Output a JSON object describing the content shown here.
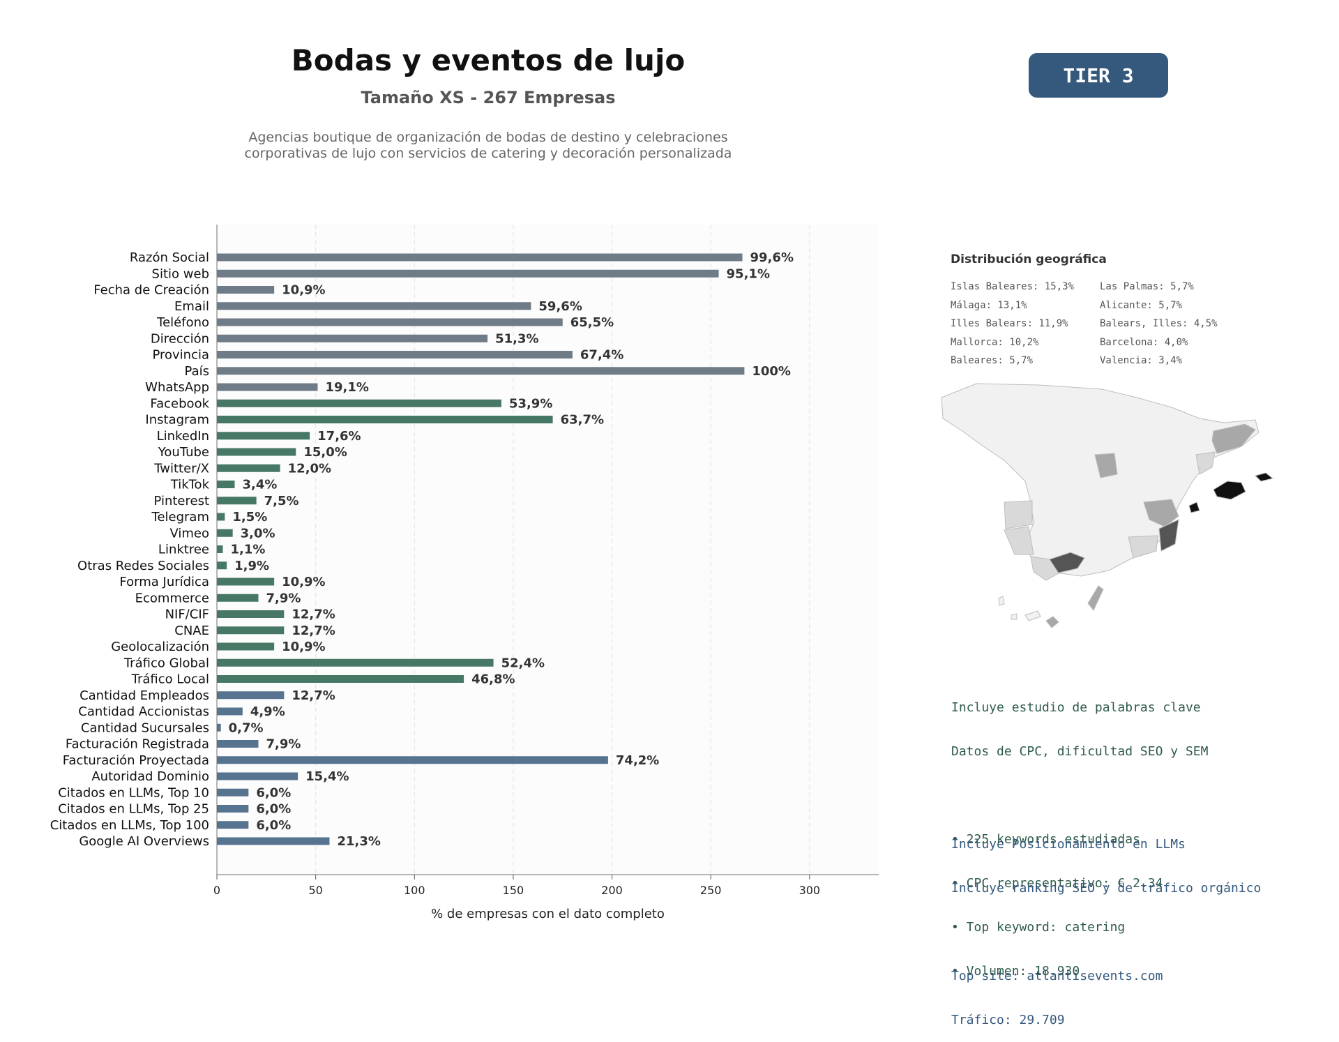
{
  "header": {
    "title": "Bodas y eventos de lujo",
    "subtitle": "Tamaño XS - 267 Empresas",
    "description": "Agencias boutique de organización de bodas de destino y celebraciones corporativas de lujo con servicios de catering y decoración personalizada",
    "tier_badge": "TIER 3"
  },
  "chart_data": {
    "type": "bar",
    "orientation": "horizontal",
    "xlabel": "% de empresas con el dato completo",
    "xlim": [
      0,
      335
    ],
    "xticks": [
      0,
      50,
      100,
      150,
      200,
      250,
      300
    ],
    "grid": "vertical dashed",
    "categories": [
      "Razón Social",
      "Sitio web",
      "Fecha de Creación",
      "Email",
      "Teléfono",
      "Dirección",
      "Provincia",
      "País",
      "WhatsApp",
      "Facebook",
      "Instagram",
      "LinkedIn",
      "YouTube",
      "Twitter/X",
      "TikTok",
      "Pinterest",
      "Telegram",
      "Vimeo",
      "Linktree",
      "Otras Redes Sociales",
      "Forma Jurídica",
      "Ecommerce",
      "NIF/CIF",
      "CNAE",
      "Geolocalización",
      "Tráfico Global",
      "Tráfico Local",
      "Cantidad Empleados",
      "Cantidad Accionistas",
      "Cantidad Sucursales",
      "Facturación Registrada",
      "Facturación Proyectada",
      "Autoridad Dominio",
      "Citados en LLMs, Top 10",
      "Citados en LLMs, Top 25",
      "Citados en LLMs, Top 100",
      "Google AI Overviews"
    ],
    "values": [
      266,
      254,
      29,
      159,
      175,
      137,
      180,
      267,
      51,
      144,
      170,
      47,
      40,
      32,
      9,
      20,
      4,
      8,
      3,
      5,
      29,
      21,
      34,
      34,
      29,
      140,
      125,
      34,
      13,
      2,
      21,
      198,
      41,
      16,
      16,
      16,
      57
    ],
    "data_labels": [
      "99,6%",
      "95,1%",
      "10,9%",
      "59,6%",
      "65,5%",
      "51,3%",
      "67,4%",
      "100%",
      "19,1%",
      "53,9%",
      "63,7%",
      "17,6%",
      "15,0%",
      "12,0%",
      "3,4%",
      "7,5%",
      "1,5%",
      "3,0%",
      "1,1%",
      "1,9%",
      "10,9%",
      "7,9%",
      "12,7%",
      "12,7%",
      "10,9%",
      "52,4%",
      "46,8%",
      "12,7%",
      "4,9%",
      "0,7%",
      "7,9%",
      "74,2%",
      "15,4%",
      "6,0%",
      "6,0%",
      "6,0%",
      "21,3%"
    ],
    "groups": [
      {
        "from": 0,
        "to": 8,
        "color": "#6f7b87"
      },
      {
        "from": 9,
        "to": 26,
        "color": "#477865"
      },
      {
        "from": 27,
        "to": 36,
        "color": "#56738f"
      }
    ]
  },
  "geo": {
    "title": "Distribución geográfica",
    "column_1": [
      "Islas Baleares: 15,3%",
      "Málaga: 13,1%",
      "Illes Balears: 11,9%",
      "Mallorca: 10,2%",
      "Baleares: 5,7%"
    ],
    "column_2": [
      "Las Palmas: 5,7%",
      "Alicante: 5,7%",
      "Balears, Illes: 4,5%",
      "Barcelona: 4,0%",
      "Valencia: 3,4%"
    ],
    "map_colors": {
      "base": "#f1f1f1",
      "border": "#bdbdbd",
      "light": "#d9d9d9",
      "mid": "#a8a8a8",
      "dark": "#555555",
      "darkest": "#111111"
    }
  },
  "keywords": {
    "lines": [
      "Incluye estudio de palabras clave",
      "Datos de CPC, dificultad SEO y SEM",
      "",
      "• 225 keywords estudiadas",
      "• CPC representativo: € 2.34",
      "• Top keyword: catering",
      "• Volumen: 18.930"
    ]
  },
  "llm": {
    "lines": [
      "Incluye Posicionamiento en LLMs",
      "Incluye ranking SEO y de tráfico orgánico",
      "",
      "Top site: atlantisevents.com",
      "Tráfico: 29.709"
    ]
  }
}
